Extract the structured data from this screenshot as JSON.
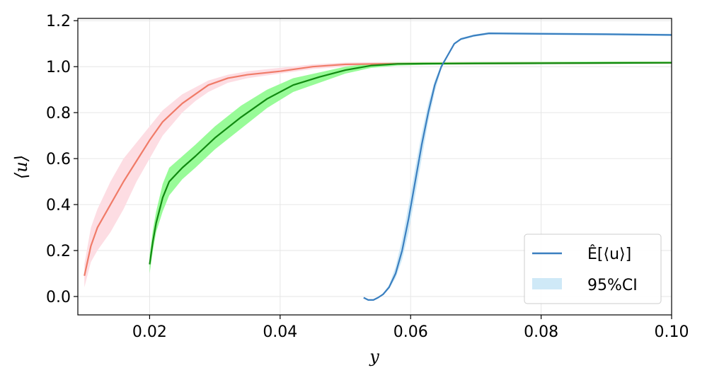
{
  "chart_data": {
    "type": "line",
    "xlabel": "y",
    "ylabel": "⟨u⟩",
    "xlim": [
      0.009,
      0.1
    ],
    "ylim": [
      -0.08,
      1.21
    ],
    "xticks": [
      0.02,
      0.04,
      0.06,
      0.08,
      0.1
    ],
    "xtick_labels": [
      "0.02",
      "0.04",
      "0.06",
      "0.08",
      "0.10"
    ],
    "yticks": [
      0.0,
      0.2,
      0.4,
      0.6,
      0.8,
      1.0,
      1.2
    ],
    "ytick_labels": [
      "0.0",
      "0.2",
      "0.4",
      "0.6",
      "0.8",
      "1.0",
      "1.2"
    ],
    "grid": true,
    "legend": {
      "placement": "lower-right",
      "entries": [
        {
          "label": "Ê[⟨u⟩]",
          "kind": "line",
          "color": "#3a7fc0"
        },
        {
          "label": "95%CI",
          "kind": "band",
          "color": "#cfe9f7"
        }
      ]
    },
    "series": [
      {
        "color": "#f07b68",
        "band_color": "#fddde3",
        "x": [
          0.01,
          0.011,
          0.012,
          0.014,
          0.016,
          0.018,
          0.02,
          0.022,
          0.025,
          0.027,
          0.029,
          0.032,
          0.035,
          0.04,
          0.045,
          0.05,
          0.055,
          0.06,
          0.07,
          0.08,
          0.09,
          0.1
        ],
        "y": [
          0.09,
          0.22,
          0.3,
          0.4,
          0.5,
          0.59,
          0.68,
          0.76,
          0.84,
          0.88,
          0.92,
          0.95,
          0.965,
          0.98,
          1.0,
          1.01,
          1.012,
          1.013,
          1.014,
          1.015,
          1.016,
          1.017
        ],
        "lower": [
          0.04,
          0.15,
          0.2,
          0.28,
          0.38,
          0.5,
          0.6,
          0.7,
          0.8,
          0.85,
          0.89,
          0.93,
          0.95,
          0.97,
          0.99,
          1.0,
          1.005,
          1.008,
          1.01,
          1.011,
          1.012,
          1.013
        ],
        "upper": [
          0.14,
          0.3,
          0.38,
          0.5,
          0.6,
          0.67,
          0.74,
          0.81,
          0.88,
          0.91,
          0.94,
          0.965,
          0.98,
          0.995,
          1.01,
          1.018,
          1.02,
          1.021,
          1.022,
          1.022,
          1.022,
          1.022
        ]
      },
      {
        "color": "#118a11",
        "band_color": "#98fb98",
        "x": [
          0.02,
          0.0205,
          0.021,
          0.022,
          0.023,
          0.025,
          0.027,
          0.03,
          0.034,
          0.038,
          0.042,
          0.046,
          0.05,
          0.054,
          0.058,
          0.062,
          0.07,
          0.08,
          0.09,
          0.1
        ],
        "y": [
          0.14,
          0.24,
          0.32,
          0.43,
          0.5,
          0.56,
          0.61,
          0.69,
          0.78,
          0.86,
          0.92,
          0.955,
          0.985,
          1.005,
          1.012,
          1.013,
          1.014,
          1.015,
          1.016,
          1.017
        ],
        "lower": [
          0.1,
          0.2,
          0.28,
          0.37,
          0.44,
          0.51,
          0.56,
          0.64,
          0.73,
          0.82,
          0.89,
          0.93,
          0.97,
          0.995,
          1.005,
          1.008,
          1.01,
          1.011,
          1.012,
          1.013
        ],
        "upper": [
          0.18,
          0.29,
          0.37,
          0.49,
          0.56,
          0.61,
          0.66,
          0.74,
          0.83,
          0.9,
          0.95,
          0.975,
          1.0,
          1.015,
          1.018,
          1.019,
          1.02,
          1.021,
          1.022,
          1.022
        ]
      },
      {
        "color": "#3a7fc0",
        "band_color": "#cfe9f7",
        "x": [
          0.0528,
          0.0535,
          0.0543,
          0.055,
          0.0558,
          0.0567,
          0.0577,
          0.0587,
          0.0597,
          0.0607,
          0.0617,
          0.0627,
          0.0637,
          0.0647,
          0.0657,
          0.0667,
          0.0677,
          0.0697,
          0.072,
          0.08,
          0.09,
          0.1
        ],
        "y": [
          -0.005,
          -0.015,
          -0.015,
          -0.005,
          0.01,
          0.04,
          0.1,
          0.2,
          0.34,
          0.5,
          0.66,
          0.8,
          0.92,
          1.0,
          1.05,
          1.1,
          1.12,
          1.135,
          1.145,
          1.143,
          1.141,
          1.138
        ],
        "lower": [
          -0.005,
          -0.015,
          -0.015,
          -0.005,
          0.01,
          0.035,
          0.08,
          0.16,
          0.28,
          0.44,
          0.6,
          0.76,
          0.89,
          0.99,
          1.045,
          1.095,
          1.115,
          1.13,
          1.14,
          1.138,
          1.136,
          1.133
        ],
        "upper": [
          -0.005,
          -0.015,
          -0.015,
          -0.005,
          0.015,
          0.05,
          0.13,
          0.25,
          0.4,
          0.56,
          0.71,
          0.84,
          0.94,
          1.01,
          1.055,
          1.105,
          1.125,
          1.14,
          1.15,
          1.148,
          1.146,
          1.143
        ]
      }
    ]
  }
}
